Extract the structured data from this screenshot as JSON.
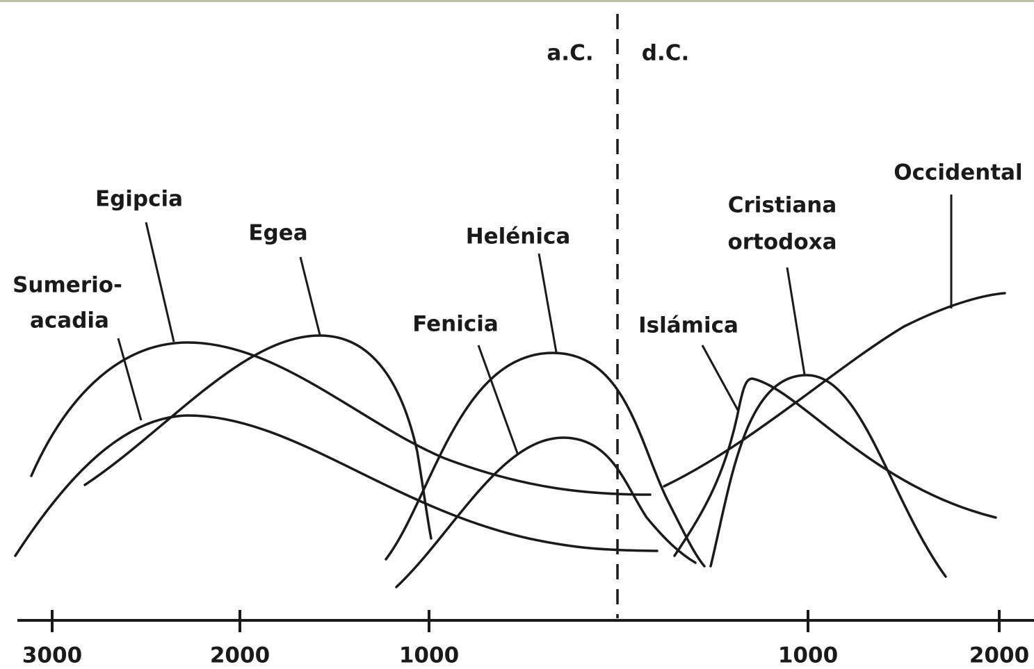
{
  "eras": [
    "a.C.",
    "d.C."
  ],
  "axis_ticks": [
    "3000",
    "2000",
    "1000",
    "1000",
    "2000"
  ],
  "civilizations": [
    {
      "lines": [
        "Sumerio-",
        "acadia"
      ]
    },
    {
      "lines": [
        "Egipcia"
      ]
    },
    {
      "lines": [
        "Egea"
      ]
    },
    {
      "lines": [
        "Fenicia"
      ]
    },
    {
      "lines": [
        "Helénica"
      ]
    },
    {
      "lines": [
        "Islámica"
      ]
    },
    {
      "lines": [
        "Cristiana",
        "ortodoxa"
      ]
    },
    {
      "lines": [
        "Occidental"
      ]
    }
  ]
}
